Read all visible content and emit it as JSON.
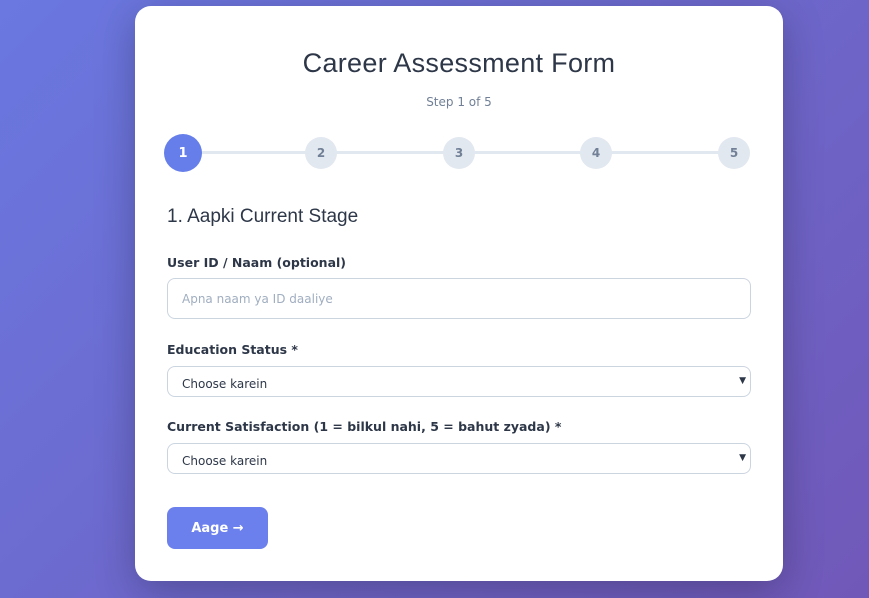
{
  "form": {
    "title": "Career Assessment Form",
    "step_text": "Step 1 of 5",
    "steps": [
      "1",
      "2",
      "3",
      "4",
      "5"
    ],
    "current_step": 1,
    "section_title": "1. Aapki Current Stage",
    "fields": [
      {
        "label": "User ID / Naam (optional)",
        "placeholder": "Apna naam ya ID daaliye",
        "value": ""
      },
      {
        "label": "Education Status *",
        "selected": "Choose karein"
      },
      {
        "label": "Current Satisfaction (1 = bilkul nahi, 5 = bahut zyada) *",
        "selected": "Choose karein"
      }
    ],
    "next_label": "Aage →"
  },
  "colors": {
    "accent": "#667eea",
    "background": "#6a78e0"
  }
}
